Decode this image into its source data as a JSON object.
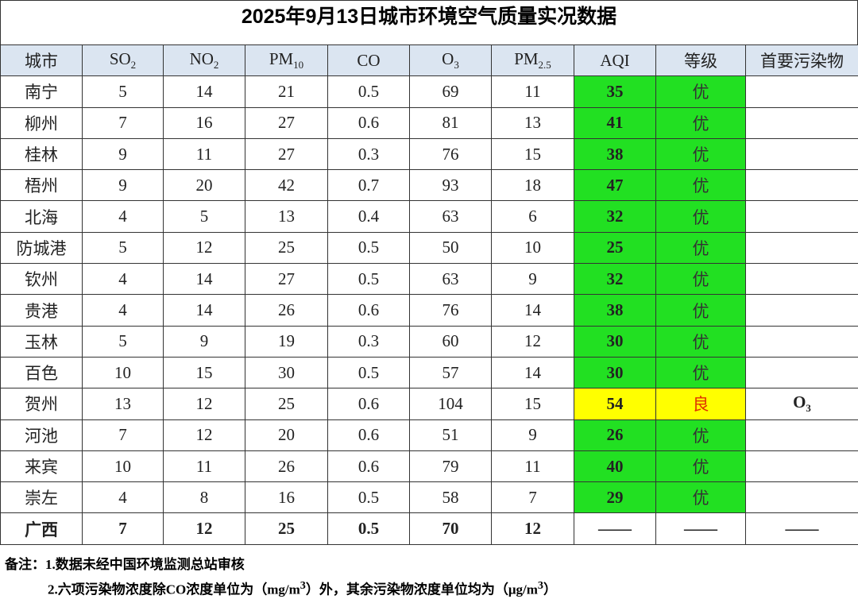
{
  "title": "2025年9月13日城市环境空气质量实况数据",
  "table": {
    "header": [
      "城市",
      {
        "text": "SO",
        "sub": "2"
      },
      {
        "text": "NO",
        "sub": "2"
      },
      {
        "text": "PM",
        "sub": "10"
      },
      "CO",
      {
        "text": "O",
        "sub": "3"
      },
      {
        "text": "PM",
        "sub": "2.5"
      },
      "AQI",
      "等级",
      "首要污染物"
    ],
    "rows": [
      {
        "city": "南宁",
        "values": [
          5,
          14,
          21,
          0.5,
          69,
          11
        ],
        "aqi": 35,
        "level": "优",
        "color": "#22e022",
        "level_color": "#333333"
      },
      {
        "city": "柳州",
        "values": [
          7,
          16,
          27,
          0.6,
          81,
          13
        ],
        "aqi": 41,
        "level": "优",
        "color": "#22e022",
        "level_color": "#333333"
      },
      {
        "city": "桂林",
        "values": [
          9,
          11,
          27,
          0.3,
          76,
          15
        ],
        "aqi": 38,
        "level": "优",
        "color": "#22e022",
        "level_color": "#333333"
      },
      {
        "city": "梧州",
        "values": [
          9,
          20,
          42,
          0.7,
          93,
          18
        ],
        "aqi": 47,
        "level": "优",
        "color": "#22e022",
        "level_color": "#333333"
      },
      {
        "city": "北海",
        "values": [
          4,
          5,
          13,
          0.4,
          63,
          6
        ],
        "aqi": 32,
        "level": "优",
        "color": "#22e022",
        "level_color": "#333333"
      },
      {
        "city": "防城港",
        "values": [
          5,
          12,
          25,
          0.5,
          50,
          10
        ],
        "aqi": 25,
        "level": "优",
        "color": "#22e022",
        "level_color": "#333333"
      },
      {
        "city": "钦州",
        "values": [
          4,
          14,
          27,
          0.5,
          63,
          9
        ],
        "aqi": 32,
        "level": "优",
        "color": "#22e022",
        "level_color": "#333333"
      },
      {
        "city": "贵港",
        "values": [
          4,
          14,
          26,
          0.6,
          76,
          14
        ],
        "aqi": 38,
        "level": "优",
        "color": "#22e022",
        "level_color": "#333333"
      },
      {
        "city": "玉林",
        "values": [
          5,
          9,
          19,
          0.3,
          60,
          12
        ],
        "aqi": 30,
        "level": "优",
        "color": "#22e022",
        "level_color": "#333333"
      },
      {
        "city": "百色",
        "values": [
          10,
          15,
          30,
          0.5,
          57,
          14
        ],
        "aqi": 30,
        "level": "优",
        "color": "#22e022",
        "level_color": "#333333"
      },
      {
        "city": "贺州",
        "values": [
          13,
          12,
          25,
          0.6,
          104,
          15
        ],
        "aqi": 54,
        "level": "良",
        "color": "#ffff00",
        "level_color": "#e03000",
        "primary": {
          "text": "O",
          "sub": "3"
        }
      },
      {
        "city": "河池",
        "values": [
          7,
          12,
          20,
          0.6,
          51,
          9
        ],
        "aqi": 26,
        "level": "优",
        "color": "#22e022",
        "level_color": "#333333"
      },
      {
        "city": "来宾",
        "values": [
          10,
          11,
          26,
          0.6,
          79,
          11
        ],
        "aqi": 40,
        "level": "优",
        "color": "#22e022",
        "level_color": "#333333"
      },
      {
        "city": "崇左",
        "values": [
          4,
          8,
          16,
          0.5,
          58,
          7
        ],
        "aqi": 29,
        "level": "优",
        "color": "#22e022",
        "level_color": "#333333"
      }
    ],
    "total": {
      "city": "广西",
      "values": [
        7,
        12,
        25,
        0.5,
        70,
        12
      ],
      "aqi": "——",
      "level": "——",
      "primary": "——"
    }
  },
  "notes": {
    "label": "备注：",
    "line1": "1.数据未经中国环境监测总站审核",
    "line2": [
      {
        "text": "2.六项污染物浓度除CO浓度单位为（mg/m"
      },
      {
        "sup": "3"
      },
      {
        "text": "）外，其余污染物浓度单位均为（μg/m"
      },
      {
        "sup": "3"
      },
      {
        "text": "）"
      }
    ]
  }
}
